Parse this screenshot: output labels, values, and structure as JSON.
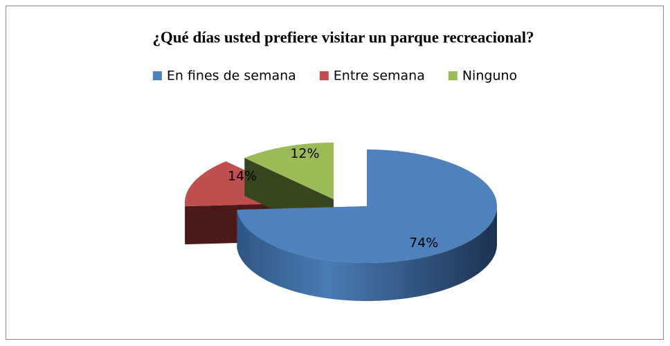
{
  "chart_data": {
    "type": "pie3d",
    "title": "¿Qué días usted prefiere visitar un parque recreacional?",
    "categories": [
      "En fines de semana",
      "Entre semana",
      "Ninguno"
    ],
    "values": [
      74,
      14,
      12
    ],
    "value_labels": [
      "74%",
      "14%",
      "12%"
    ],
    "colors": [
      "#4f81bd",
      "#c0504d",
      "#9bbb59"
    ],
    "legend": "top"
  }
}
